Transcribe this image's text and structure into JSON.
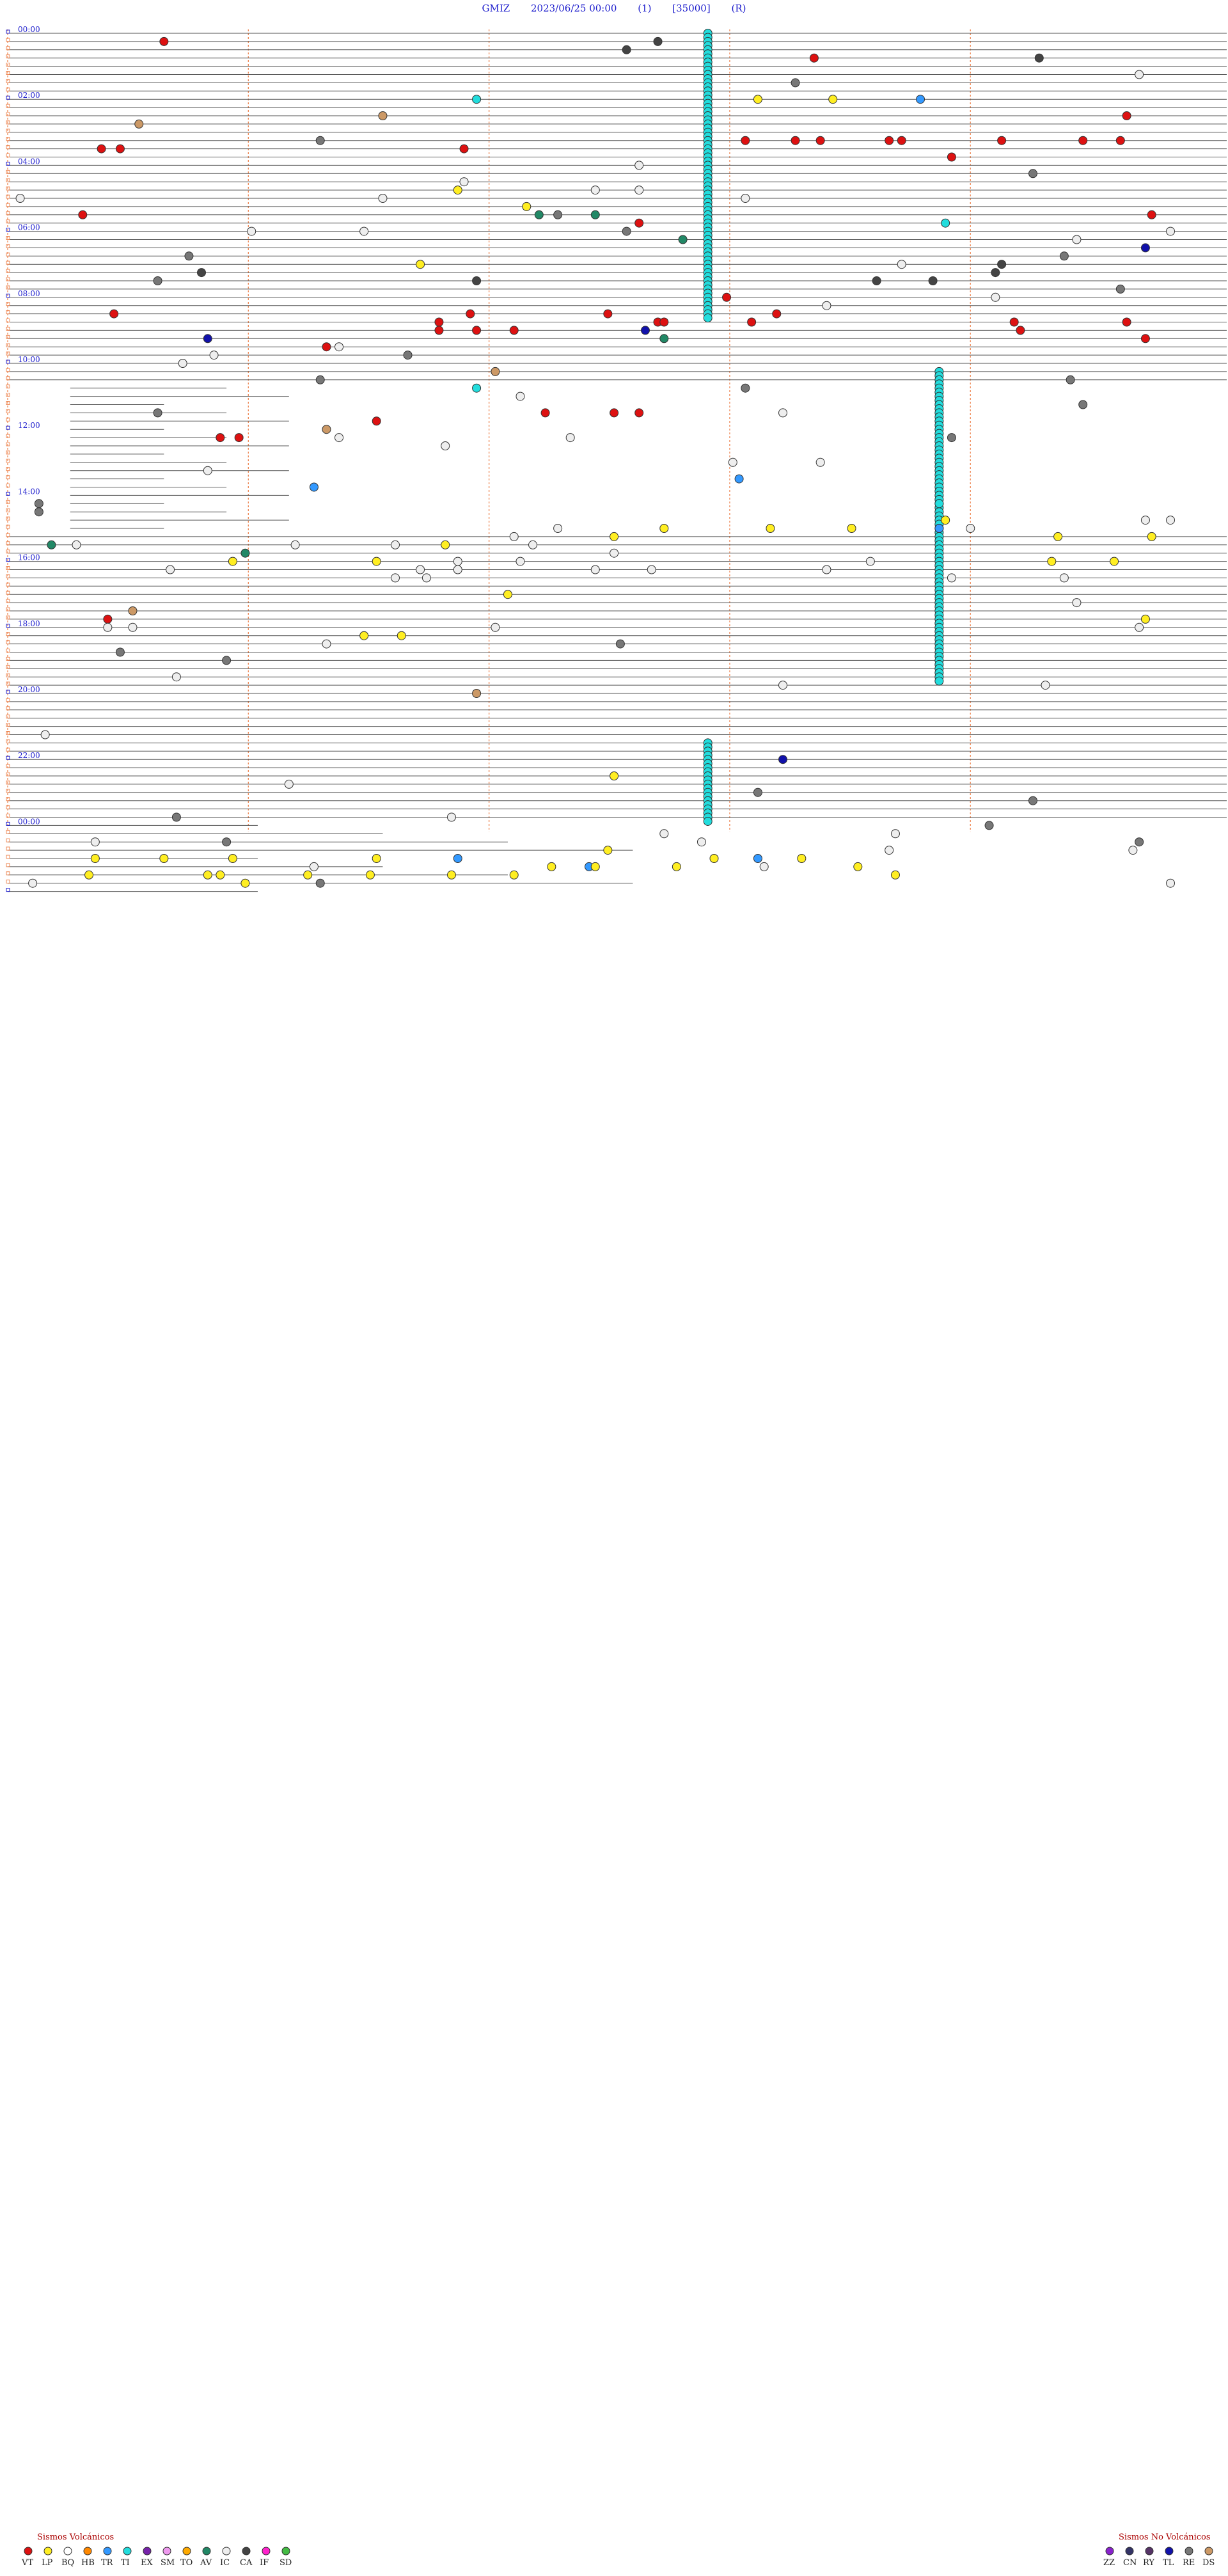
{
  "header": {
    "station": "GMIZ",
    "datetime": "2023/06/25 00:00",
    "channel": "(1)",
    "scale": "[35000]",
    "mode": "(R)"
  },
  "chart_data": {
    "type": "scatter",
    "description_axis": "helicorder: one line per 15 minutes, 96 lines; x = minutes within line",
    "x_range_minutes": [
      0,
      15
    ],
    "hour_labels": [
      "00:00",
      "02:00",
      "04:00",
      "06:00",
      "08:00",
      "10:00",
      "12:00",
      "14:00",
      "16:00",
      "18:00",
      "20:00",
      "22:00",
      "00:00"
    ],
    "legend_volcanic": {
      "title": "Sismos Volcánicos",
      "items": [
        {
          "code": "VT",
          "color": "#dd1111"
        },
        {
          "code": "LP",
          "color": "#ffee22"
        },
        {
          "code": "BQ",
          "color": "#ffffff"
        },
        {
          "code": "HB",
          "color": "#ff8800"
        },
        {
          "code": "TR",
          "color": "#3399ff"
        },
        {
          "code": "TI",
          "color": "#22dddd"
        },
        {
          "code": "EX",
          "color": "#7722aa"
        },
        {
          "code": "SM",
          "color": "#ee99ee"
        },
        {
          "code": "TO",
          "color": "#ffaa00"
        },
        {
          "code": "AV",
          "color": "#228866"
        },
        {
          "code": "IC",
          "color": "#eeeeee"
        },
        {
          "code": "CA",
          "color": "#444444"
        },
        {
          "code": "IF",
          "color": "#ff22cc"
        },
        {
          "code": "SD",
          "color": "#44bb44"
        }
      ]
    },
    "legend_nonvolcanic": {
      "title": "Sismos No Volcánicos",
      "items": [
        {
          "code": "ZZ",
          "color": "#8822cc"
        },
        {
          "code": "CN",
          "color": "#333366"
        },
        {
          "code": "RY",
          "color": "#553366"
        },
        {
          "code": "TL",
          "color": "#1111aa"
        },
        {
          "code": "RE",
          "color": "#777777"
        },
        {
          "code": "DS",
          "color": "#cc9966"
        }
      ]
    },
    "tremor_columns": [
      {
        "x_min": 11.2,
        "from_line": 0,
        "to_line": 35
      },
      {
        "x_min": 14.9,
        "from_line": 41,
        "to_line": 79
      },
      {
        "x_min": 11.2,
        "from_line": 86,
        "to_line": 96
      }
    ],
    "events": [
      {
        "line": 1,
        "x": 2.5,
        "type": "VT"
      },
      {
        "line": 2,
        "x": 9.9,
        "type": "CA"
      },
      {
        "line": 1,
        "x": 10.4,
        "type": "CA"
      },
      {
        "line": 3,
        "x": 12.9,
        "type": "VT"
      },
      {
        "line": 3,
        "x": 16.5,
        "type": "CA"
      },
      {
        "line": 6,
        "x": 12.6,
        "type": "RE"
      },
      {
        "line": 5,
        "x": 18.1,
        "type": "IC"
      },
      {
        "line": 8,
        "x": 7.5,
        "type": "TI"
      },
      {
        "line": 8,
        "x": 12.0,
        "type": "LP"
      },
      {
        "line": 8,
        "x": 13.2,
        "type": "LP"
      },
      {
        "line": 8,
        "x": 14.6,
        "type": "TR"
      },
      {
        "line": 10,
        "x": 6.0,
        "type": "DS"
      },
      {
        "line": 11,
        "x": 2.1,
        "type": "DS"
      },
      {
        "line": 10,
        "x": 17.9,
        "type": "VT"
      },
      {
        "line": 13,
        "x": 5.0,
        "type": "RE"
      },
      {
        "line": 14,
        "x": 1.5,
        "type": "VT"
      },
      {
        "line": 14,
        "x": 1.8,
        "type": "VT"
      },
      {
        "line": 14,
        "x": 7.3,
        "type": "VT"
      },
      {
        "line": 13,
        "x": 11.8,
        "type": "VT"
      },
      {
        "line": 13,
        "x": 12.6,
        "type": "VT"
      },
      {
        "line": 13,
        "x": 13.0,
        "type": "VT"
      },
      {
        "line": 13,
        "x": 14.1,
        "type": "VT"
      },
      {
        "line": 13,
        "x": 14.3,
        "type": "VT"
      },
      {
        "line": 13,
        "x": 15.9,
        "type": "VT"
      },
      {
        "line": 13,
        "x": 17.2,
        "type": "VT"
      },
      {
        "line": 13,
        "x": 17.8,
        "type": "VT"
      },
      {
        "line": 15,
        "x": 15.1,
        "type": "VT"
      },
      {
        "line": 16,
        "x": 10.1,
        "type": "IC"
      },
      {
        "line": 17,
        "x": 16.4,
        "type": "RE"
      },
      {
        "line": 18,
        "x": 7.3,
        "type": "IC"
      },
      {
        "line": 19,
        "x": 9.4,
        "type": "IC"
      },
      {
        "line": 19,
        "x": 7.2,
        "type": "LP"
      },
      {
        "line": 19,
        "x": 10.1,
        "type": "IC"
      },
      {
        "line": 20,
        "x": 0.2,
        "type": "IC"
      },
      {
        "line": 20,
        "x": 11.8,
        "type": "IC"
      },
      {
        "line": 20,
        "x": 6.0,
        "type": "IC"
      },
      {
        "line": 21,
        "x": 8.3,
        "type": "LP"
      },
      {
        "line": 22,
        "x": 8.5,
        "type": "AV"
      },
      {
        "line": 22,
        "x": 9.4,
        "type": "AV"
      },
      {
        "line": 22,
        "x": 8.8,
        "type": "RE"
      },
      {
        "line": 22,
        "x": 1.2,
        "type": "VT"
      },
      {
        "line": 23,
        "x": 10.1,
        "type": "VT"
      },
      {
        "line": 22,
        "x": 18.3,
        "type": "VT"
      },
      {
        "line": 24,
        "x": 9.9,
        "type": "RE"
      },
      {
        "line": 24,
        "x": 3.9,
        "type": "IC"
      },
      {
        "line": 24,
        "x": 5.7,
        "type": "IC"
      },
      {
        "line": 23,
        "x": 15.0,
        "type": "TI"
      },
      {
        "line": 24,
        "x": 18.6,
        "type": "IC"
      },
      {
        "line": 25,
        "x": 17.1,
        "type": "IC"
      },
      {
        "line": 25,
        "x": 10.8,
        "type": "AV"
      },
      {
        "line": 26,
        "x": 18.2,
        "type": "TL"
      },
      {
        "line": 27,
        "x": 2.9,
        "type": "RE"
      },
      {
        "line": 27,
        "x": 16.9,
        "type": "RE"
      },
      {
        "line": 28,
        "x": 6.6,
        "type": "LP"
      },
      {
        "line": 28,
        "x": 14.3,
        "type": "IC"
      },
      {
        "line": 28,
        "x": 15.9,
        "type": "CA"
      },
      {
        "line": 29,
        "x": 3.1,
        "type": "CA"
      },
      {
        "line": 29,
        "x": 15.8,
        "type": "CA"
      },
      {
        "line": 30,
        "x": 2.4,
        "type": "RE"
      },
      {
        "line": 30,
        "x": 7.5,
        "type": "CA"
      },
      {
        "line": 30,
        "x": 13.9,
        "type": "CA"
      },
      {
        "line": 30,
        "x": 14.8,
        "type": "CA"
      },
      {
        "line": 31,
        "x": 17.8,
        "type": "RE"
      },
      {
        "line": 32,
        "x": 11.5,
        "type": "VT"
      },
      {
        "line": 32,
        "x": 15.8,
        "type": "IC"
      },
      {
        "line": 33,
        "x": 13.1,
        "type": "IC"
      },
      {
        "line": 34,
        "x": 1.7,
        "type": "VT"
      },
      {
        "line": 34,
        "x": 7.4,
        "type": "VT"
      },
      {
        "line": 34,
        "x": 9.6,
        "type": "VT"
      },
      {
        "line": 34,
        "x": 12.3,
        "type": "VT"
      },
      {
        "line": 35,
        "x": 6.9,
        "type": "VT"
      },
      {
        "line": 35,
        "x": 10.4,
        "type": "VT"
      },
      {
        "line": 35,
        "x": 10.5,
        "type": "VT"
      },
      {
        "line": 35,
        "x": 11.9,
        "type": "VT"
      },
      {
        "line": 35,
        "x": 16.1,
        "type": "VT"
      },
      {
        "line": 35,
        "x": 17.9,
        "type": "VT"
      },
      {
        "line": 36,
        "x": 6.9,
        "type": "VT"
      },
      {
        "line": 36,
        "x": 7.5,
        "type": "VT"
      },
      {
        "line": 36,
        "x": 8.1,
        "type": "VT"
      },
      {
        "line": 36,
        "x": 10.2,
        "type": "TL"
      },
      {
        "line": 36,
        "x": 16.2,
        "type": "VT"
      },
      {
        "line": 37,
        "x": 3.2,
        "type": "TL"
      },
      {
        "line": 38,
        "x": 5.1,
        "type": "VT"
      },
      {
        "line": 38,
        "x": 5.3,
        "type": "IC"
      },
      {
        "line": 37,
        "x": 10.5,
        "type": "AV"
      },
      {
        "line": 37,
        "x": 18.2,
        "type": "VT"
      },
      {
        "line": 39,
        "x": 3.3,
        "type": "IC"
      },
      {
        "line": 40,
        "x": 2.8,
        "type": "IC"
      },
      {
        "line": 39,
        "x": 6.4,
        "type": "RE"
      },
      {
        "line": 41,
        "x": 7.8,
        "type": "DS"
      },
      {
        "line": 42,
        "x": 5.0,
        "type": "RE"
      },
      {
        "line": 43,
        "x": 7.5,
        "type": "TI"
      },
      {
        "line": 43,
        "x": 11.8,
        "type": "RE"
      },
      {
        "line": 42,
        "x": 17.0,
        "type": "RE"
      },
      {
        "line": 44,
        "x": 8.2,
        "type": "IC"
      },
      {
        "line": 45,
        "x": 17.2,
        "type": "RE"
      },
      {
        "line": 46,
        "x": 2.4,
        "type": "RE"
      },
      {
        "line": 46,
        "x": 12.4,
        "type": "IC"
      },
      {
        "line": 47,
        "x": 5.9,
        "type": "VT"
      },
      {
        "line": 46,
        "x": 8.6,
        "type": "VT"
      },
      {
        "line": 46,
        "x": 9.7,
        "type": "VT"
      },
      {
        "line": 46,
        "x": 10.1,
        "type": "VT"
      },
      {
        "line": 48,
        "x": 5.1,
        "type": "DS"
      },
      {
        "line": 49,
        "x": 3.4,
        "type": "VT"
      },
      {
        "line": 49,
        "x": 3.7,
        "type": "VT"
      },
      {
        "line": 49,
        "x": 5.3,
        "type": "IC"
      },
      {
        "line": 49,
        "x": 9.0,
        "type": "IC"
      },
      {
        "line": 49,
        "x": 15.1,
        "type": "RE"
      },
      {
        "line": 50,
        "x": 7.0,
        "type": "IC"
      },
      {
        "line": 52,
        "x": 11.6,
        "type": "IC"
      },
      {
        "line": 52,
        "x": 13.0,
        "type": "IC"
      },
      {
        "line": 53,
        "x": 3.2,
        "type": "IC"
      },
      {
        "line": 54,
        "x": 11.7,
        "type": "TR"
      },
      {
        "line": 55,
        "x": 4.9,
        "type": "TR"
      },
      {
        "line": 57,
        "x": 0.5,
        "type": "RE"
      },
      {
        "line": 58,
        "x": 0.5,
        "type": "RE"
      },
      {
        "line": 57,
        "x": 14.9,
        "type": "TI"
      },
      {
        "line": 59,
        "x": 18.6,
        "type": "IC"
      },
      {
        "line": 59,
        "x": 18.2,
        "type": "IC"
      },
      {
        "line": 60,
        "x": 8.8,
        "type": "IC"
      },
      {
        "line": 60,
        "x": 10.5,
        "type": "LP"
      },
      {
        "line": 60,
        "x": 12.2,
        "type": "LP"
      },
      {
        "line": 60,
        "x": 13.5,
        "type": "LP"
      },
      {
        "line": 60,
        "x": 14.9,
        "type": "TR"
      },
      {
        "line": 60,
        "x": 15.4,
        "type": "IC"
      },
      {
        "line": 59,
        "x": 15.0,
        "type": "LP"
      },
      {
        "line": 61,
        "x": 8.1,
        "type": "IC"
      },
      {
        "line": 62,
        "x": 0.7,
        "type": "AV"
      },
      {
        "line": 62,
        "x": 1.1,
        "type": "IC"
      },
      {
        "line": 62,
        "x": 4.6,
        "type": "IC"
      },
      {
        "line": 62,
        "x": 6.2,
        "type": "IC"
      },
      {
        "line": 62,
        "x": 7.0,
        "type": "LP"
      },
      {
        "line": 62,
        "x": 8.4,
        "type": "IC"
      },
      {
        "line": 61,
        "x": 9.7,
        "type": "LP"
      },
      {
        "line": 61,
        "x": 16.8,
        "type": "LP"
      },
      {
        "line": 61,
        "x": 18.3,
        "type": "LP"
      },
      {
        "line": 63,
        "x": 3.8,
        "type": "AV"
      },
      {
        "line": 63,
        "x": 9.7,
        "type": "IC"
      },
      {
        "line": 64,
        "x": 3.6,
        "type": "LP"
      },
      {
        "line": 64,
        "x": 5.9,
        "type": "LP"
      },
      {
        "line": 64,
        "x": 7.2,
        "type": "IC"
      },
      {
        "line": 64,
        "x": 8.2,
        "type": "IC"
      },
      {
        "line": 64,
        "x": 13.8,
        "type": "IC"
      },
      {
        "line": 64,
        "x": 16.7,
        "type": "LP"
      },
      {
        "line": 64,
        "x": 17.7,
        "type": "LP"
      },
      {
        "line": 65,
        "x": 2.6,
        "type": "IC"
      },
      {
        "line": 65,
        "x": 6.6,
        "type": "IC"
      },
      {
        "line": 65,
        "x": 7.2,
        "type": "IC"
      },
      {
        "line": 65,
        "x": 9.4,
        "type": "IC"
      },
      {
        "line": 65,
        "x": 10.3,
        "type": "IC"
      },
      {
        "line": 65,
        "x": 13.1,
        "type": "IC"
      },
      {
        "line": 66,
        "x": 6.2,
        "type": "IC"
      },
      {
        "line": 66,
        "x": 6.7,
        "type": "IC"
      },
      {
        "line": 66,
        "x": 15.1,
        "type": "IC"
      },
      {
        "line": 66,
        "x": 16.9,
        "type": "IC"
      },
      {
        "line": 68,
        "x": 8.0,
        "type": "LP"
      },
      {
        "line": 69,
        "x": 17.1,
        "type": "IC"
      },
      {
        "line": 70,
        "x": 2.0,
        "type": "DS"
      },
      {
        "line": 71,
        "x": 1.6,
        "type": "VT"
      },
      {
        "line": 71,
        "x": 18.2,
        "type": "LP"
      },
      {
        "line": 72,
        "x": 1.6,
        "type": "IC"
      },
      {
        "line": 72,
        "x": 2.0,
        "type": "IC"
      },
      {
        "line": 72,
        "x": 18.1,
        "type": "IC"
      },
      {
        "line": 72,
        "x": 7.8,
        "type": "IC"
      },
      {
        "line": 73,
        "x": 5.7,
        "type": "LP"
      },
      {
        "line": 73,
        "x": 6.3,
        "type": "LP"
      },
      {
        "line": 74,
        "x": 5.1,
        "type": "IC"
      },
      {
        "line": 74,
        "x": 9.8,
        "type": "RE"
      },
      {
        "line": 75,
        "x": 1.8,
        "type": "RE"
      },
      {
        "line": 76,
        "x": 3.5,
        "type": "RE"
      },
      {
        "line": 78,
        "x": 2.7,
        "type": "IC"
      },
      {
        "line": 79,
        "x": 12.4,
        "type": "IC"
      },
      {
        "line": 79,
        "x": 16.6,
        "type": "IC"
      },
      {
        "line": 80,
        "x": 7.5,
        "type": "DS"
      },
      {
        "line": 85,
        "x": 0.6,
        "type": "IC"
      },
      {
        "line": 88,
        "x": 12.4,
        "type": "TL"
      },
      {
        "line": 90,
        "x": 9.7,
        "type": "LP"
      },
      {
        "line": 91,
        "x": 4.5,
        "type": "IC"
      },
      {
        "line": 92,
        "x": 12.0,
        "type": "RE"
      },
      {
        "line": 93,
        "x": 16.4,
        "type": "RE"
      },
      {
        "line": 95,
        "x": 2.7,
        "type": "RE"
      },
      {
        "line": 95,
        "x": 7.1,
        "type": "IC"
      },
      {
        "line": 96,
        "x": 15.7,
        "type": "RE"
      },
      {
        "line": 97,
        "x": 10.5,
        "type": "IC"
      },
      {
        "line": 97,
        "x": 14.2,
        "type": "IC"
      },
      {
        "line": 98,
        "x": 18.1,
        "type": "RE"
      },
      {
        "line": 98,
        "x": 11.1,
        "type": "IC"
      },
      {
        "line": 98,
        "x": 1.4,
        "type": "IC"
      },
      {
        "line": 98,
        "x": 3.5,
        "type": "RE"
      },
      {
        "line": 99,
        "x": 9.6,
        "type": "LP"
      },
      {
        "line": 99,
        "x": 14.1,
        "type": "IC"
      },
      {
        "line": 99,
        "x": 18.0,
        "type": "IC"
      },
      {
        "line": 100,
        "x": 1.4,
        "type": "LP"
      },
      {
        "line": 100,
        "x": 2.5,
        "type": "LP"
      },
      {
        "line": 100,
        "x": 3.6,
        "type": "LP"
      },
      {
        "line": 100,
        "x": 5.9,
        "type": "LP"
      },
      {
        "line": 100,
        "x": 7.2,
        "type": "TR"
      },
      {
        "line": 100,
        "x": 11.3,
        "type": "LP"
      },
      {
        "line": 100,
        "x": 12.0,
        "type": "TR"
      },
      {
        "line": 100,
        "x": 12.7,
        "type": "LP"
      },
      {
        "line": 101,
        "x": 4.9,
        "type": "IC"
      },
      {
        "line": 101,
        "x": 8.7,
        "type": "LP"
      },
      {
        "line": 101,
        "x": 9.3,
        "type": "TR"
      },
      {
        "line": 101,
        "x": 9.4,
        "type": "LP"
      },
      {
        "line": 101,
        "x": 10.7,
        "type": "LP"
      },
      {
        "line": 101,
        "x": 12.1,
        "type": "IC"
      },
      {
        "line": 101,
        "x": 13.6,
        "type": "LP"
      },
      {
        "line": 102,
        "x": 1.3,
        "type": "LP"
      },
      {
        "line": 102,
        "x": 3.2,
        "type": "LP"
      },
      {
        "line": 102,
        "x": 3.4,
        "type": "LP"
      },
      {
        "line": 102,
        "x": 4.8,
        "type": "LP"
      },
      {
        "line": 102,
        "x": 5.8,
        "type": "LP"
      },
      {
        "line": 102,
        "x": 7.1,
        "type": "LP"
      },
      {
        "line": 102,
        "x": 8.1,
        "type": "LP"
      },
      {
        "line": 102,
        "x": 14.2,
        "type": "LP"
      },
      {
        "line": 103,
        "x": 0.4,
        "type": "IC"
      },
      {
        "line": 103,
        "x": 3.8,
        "type": "LP"
      },
      {
        "line": 103,
        "x": 5.0,
        "type": "RE"
      },
      {
        "line": 103,
        "x": 18.6,
        "type": "IC"
      }
    ]
  }
}
